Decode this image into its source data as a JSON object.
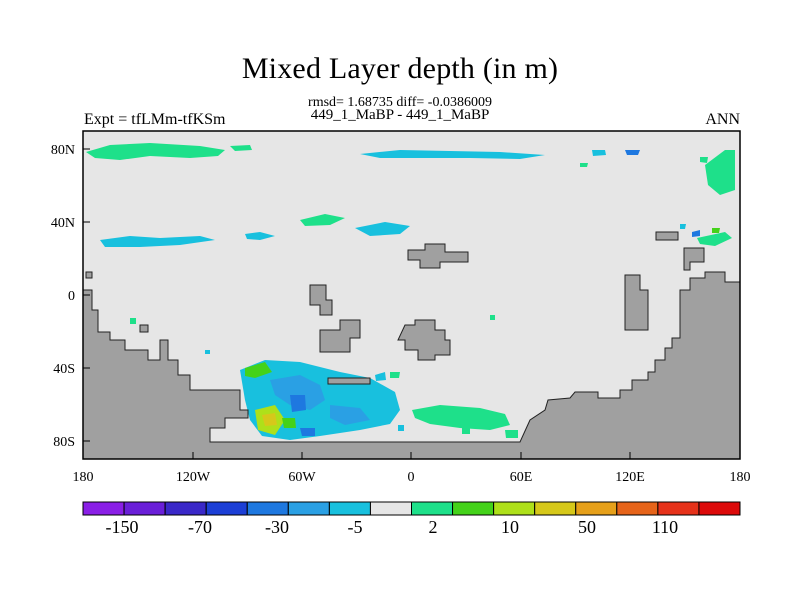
{
  "title": "Mixed Layer depth (in m)",
  "stats_line": "rmsd= 1.68735 diff= -0.0386009",
  "case_line": "449_1_MaBP - 449_1_MaBP",
  "left_string": "Expt = tfLMm-tfKSm",
  "right_string": "ANN",
  "map": {
    "projection": "cylindrical-equidistant",
    "lon_range": [
      -180,
      180
    ],
    "lat_range": [
      -90,
      90
    ],
    "lon_ticks": [
      "180",
      "120W",
      "60W",
      "0",
      "60E",
      "120E",
      "180"
    ],
    "lat_ticks": [
      "80N",
      "40N",
      "0",
      "40S",
      "80S"
    ],
    "ocean_color": "#e6e6e6",
    "land_color": "#a0a0a0"
  },
  "colorbar": {
    "colors": [
      "#8a1fe6",
      "#6a1fd8",
      "#3a28c8",
      "#1c3fd6",
      "#1e78e0",
      "#2aa0e4",
      "#18c0de",
      "#e6e6e6",
      "#1ee08a",
      "#44d21a",
      "#aee01a",
      "#d6c81a",
      "#e6a01a",
      "#e6641a",
      "#e6321a",
      "#dc0a0a"
    ],
    "labels": [
      "-150",
      "-70",
      "-30",
      "-5",
      "2",
      "10",
      "50",
      "110"
    ]
  }
}
